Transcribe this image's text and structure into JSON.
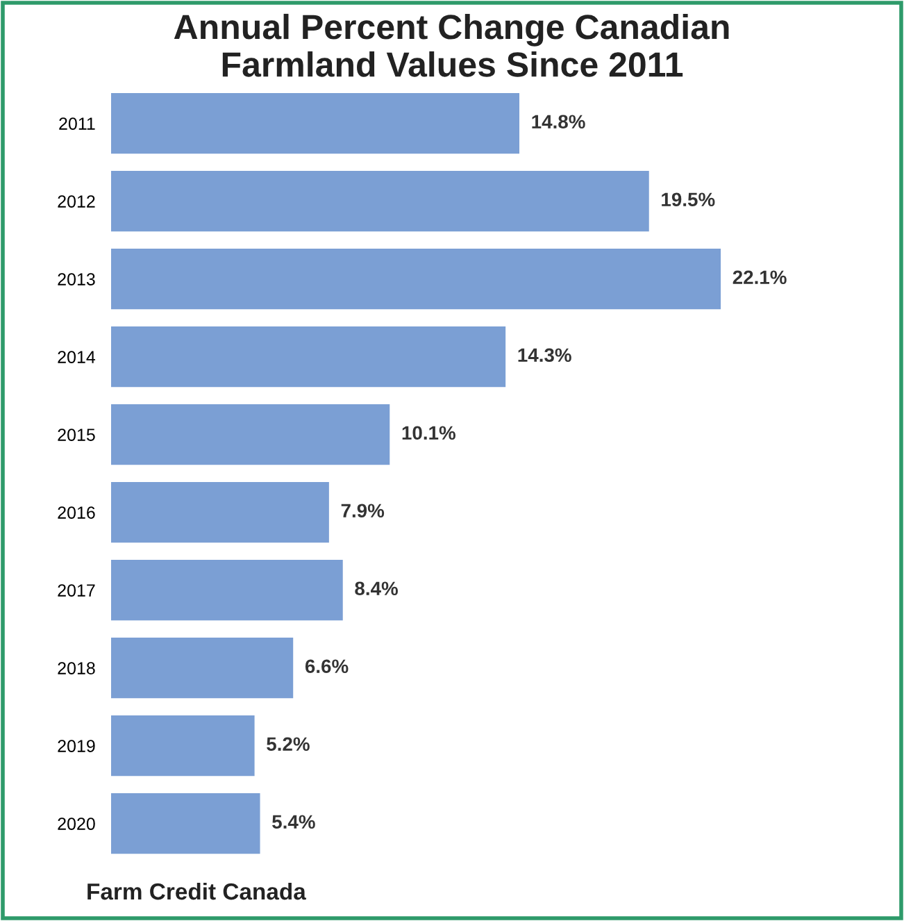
{
  "chart_data": {
    "type": "bar",
    "orientation": "horizontal",
    "title": "Annual Percent Change Canadian\nFarmland Values Since 2011",
    "categories": [
      "2011",
      "2012",
      "2013",
      "2014",
      "2015",
      "2016",
      "2017",
      "2018",
      "2019",
      "2020"
    ],
    "values": [
      14.8,
      19.5,
      22.1,
      14.3,
      10.1,
      7.9,
      8.4,
      6.6,
      5.2,
      5.4
    ],
    "value_labels": [
      "14.8%",
      "19.5%",
      "22.1%",
      "14.3%",
      "10.1%",
      "7.9%",
      "8.4%",
      "6.6%",
      "5.2%",
      "5.4%"
    ],
    "color": "#7b9fd4",
    "annotations": [
      "Farm Credit Canada"
    ],
    "grid": false,
    "legend": false
  }
}
